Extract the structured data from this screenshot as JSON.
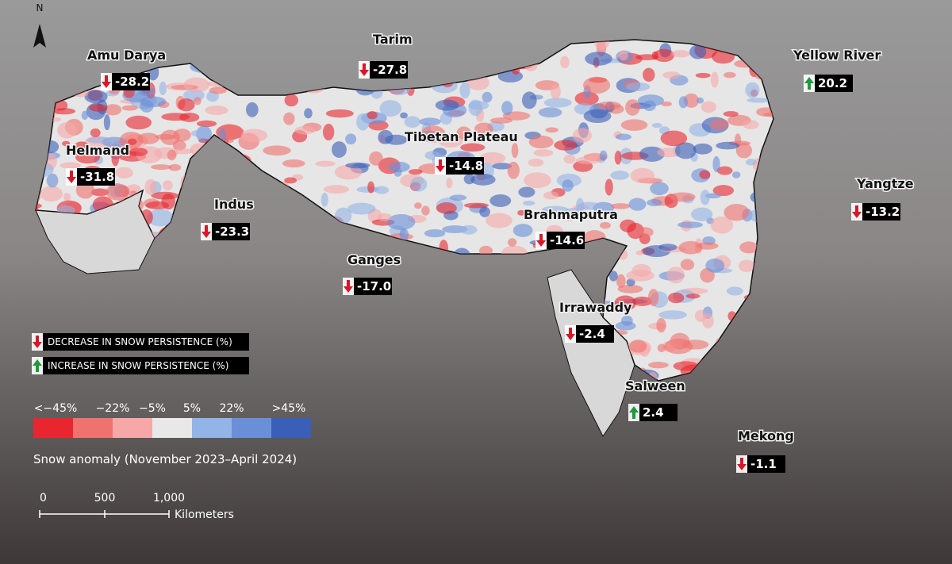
{
  "map": {
    "north_label": "N",
    "decrease_color": "#d7182a",
    "increase_color": "#1f9a3f",
    "basins": [
      {
        "name": "Amu Darya",
        "value": -28.2
      },
      {
        "name": "Tarim",
        "value": -27.8
      },
      {
        "name": "Yellow River",
        "value": 20.2
      },
      {
        "name": "Helmand",
        "value": -31.8
      },
      {
        "name": "Tibetan Plateau",
        "value": -14.8
      },
      {
        "name": "Yangtze",
        "value": -13.2
      },
      {
        "name": "Indus",
        "value": -23.3
      },
      {
        "name": "Brahmaputra",
        "value": -14.6
      },
      {
        "name": "Ganges",
        "value": -17,
        "value_label": "-17.0"
      },
      {
        "name": "Irrawaddy",
        "value": -2.4
      },
      {
        "name": "Salween",
        "value": 2.4
      },
      {
        "name": "Mekong",
        "value": -1.1
      }
    ],
    "legend": {
      "decrease": "DECREASE IN SNOW PERSISTENCE (%)",
      "increase": "INCREASE IN SNOW PERSISTENCE (%)",
      "colors": [
        "#e8262f",
        "#f0726e",
        "#f6a8a8",
        "#e8e8e8",
        "#92b4e6",
        "#6a8fd8",
        "#3a5fb8"
      ],
      "labels": [
        "<−45%",
        "−22%",
        "−5%",
        "5%",
        "22%",
        ">45%"
      ],
      "title": "Snow anomaly (November 2023–April 2024)"
    },
    "scale": {
      "ticks": [
        "0",
        "500",
        "1,000"
      ],
      "unit": "Kilometers"
    }
  }
}
